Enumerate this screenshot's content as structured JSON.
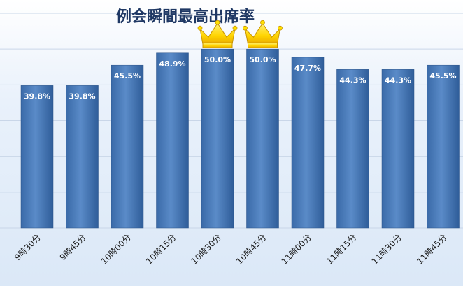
{
  "chart_data": {
    "type": "bar",
    "title": "例会瞬間最高出席率",
    "categories": [
      "9時30分",
      "9時45分",
      "10時00分",
      "10時15分",
      "10時30分",
      "10時45分",
      "11時00分",
      "11時15分",
      "11時30分",
      "11時45分"
    ],
    "values": [
      39.8,
      39.8,
      45.5,
      48.9,
      50.0,
      50.0,
      47.7,
      44.3,
      44.3,
      45.5
    ],
    "data_labels": [
      "39.8%",
      "39.8%",
      "45.5%",
      "48.9%",
      "50.0%",
      "50.0%",
      "47.7%",
      "44.3%",
      "44.3%",
      "45.5%"
    ],
    "ylim": [
      0,
      60
    ],
    "grid": true,
    "legend": "none",
    "highlight": {
      "categories": [
        "10時30分",
        "10時45分"
      ],
      "marker": "crown-icon"
    },
    "colors": {
      "bar_top": "#4f81bd",
      "bar_bottom": "#2c5a96",
      "crown": "#ffd700",
      "crown_dark": "#e6a800",
      "grid": "#c9d6e8",
      "title": "#1f3864"
    }
  }
}
